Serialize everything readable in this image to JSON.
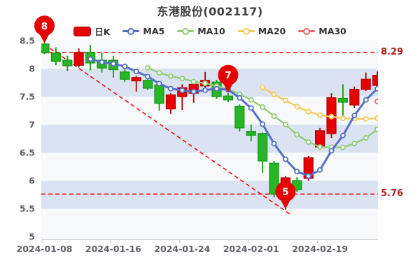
{
  "title": "东港股份(002117)",
  "legend": {
    "items": [
      {
        "label": "日K",
        "type": "candlestick",
        "color": "#e60000",
        "border": "#b30000"
      },
      {
        "label": "MA5",
        "type": "line",
        "period": 5,
        "color": "#5470c6"
      },
      {
        "label": "MA10",
        "type": "line",
        "period": 10,
        "color": "#91cc75"
      },
      {
        "label": "MA20",
        "type": "line",
        "period": 20,
        "color": "#fac858"
      },
      {
        "label": "MA30",
        "type": "line",
        "period": 30,
        "color": "#ee6666"
      }
    ]
  },
  "y_axis": {
    "ticks": [
      {
        "label": "8.5",
        "value": 8.5
      },
      {
        "label": "8",
        "value": 8.0
      },
      {
        "label": "7.5",
        "value": 7.5
      },
      {
        "label": "7",
        "value": 7.0
      },
      {
        "label": "6.5",
        "value": 6.5
      },
      {
        "label": "6",
        "value": 6.0
      },
      {
        "label": "5.5",
        "value": 5.5
      },
      {
        "label": "5",
        "value": 5.0
      }
    ]
  },
  "x_axis": {
    "ticks": [
      {
        "label": "2024-01-08",
        "day_index": 0
      },
      {
        "label": "2024-01-16",
        "day_index": 6
      },
      {
        "label": "2024-01-24",
        "day_index": 12
      },
      {
        "label": "2024-02-01",
        "day_index": 18
      },
      {
        "label": "2024-02-19",
        "day_index": 24
      }
    ]
  },
  "annotations": {
    "high_close_line": {
      "label": "8.29",
      "value": 8.29
    },
    "low_close_line": {
      "label": "5.76",
      "value": 5.76
    },
    "trend_line": {
      "from_day": 0,
      "from_value": 8.43,
      "to_day": 21.4,
      "to_value": 5.4
    },
    "pins": [
      {
        "label": "8",
        "day_index": 0,
        "anchor_value": 8.44
      },
      {
        "label": "7",
        "day_index": 16,
        "anchor_value": 7.56
      },
      {
        "label": "5",
        "day_index": 21,
        "anchor_value": 5.48
      }
    ]
  },
  "chart_data": {
    "type": "candlestick",
    "title": "东港股份(002117)",
    "ylim": [
      4.95,
      8.5125
    ],
    "grid": "horizontal-bands",
    "legend_position": "top",
    "band_colors": [
      "#f8f9fb",
      "#dbe3f3"
    ],
    "band_value_pairs": [
      [
        8.0,
        7.5
      ],
      [
        7.0,
        6.5
      ],
      [
        6.0,
        5.5
      ]
    ],
    "up_color": "#e60000",
    "up_border": "#b30000",
    "down_color": "#28b528",
    "down_border": "#12960f",
    "dates": [
      "2024-01-08",
      "2024-01-09",
      "2024-01-10",
      "2024-01-11",
      "2024-01-12",
      "2024-01-15",
      "2024-01-16",
      "2024-01-17",
      "2024-01-18",
      "2024-01-19",
      "2024-01-22",
      "2024-01-23",
      "2024-01-24",
      "2024-01-25",
      "2024-01-26",
      "2024-01-29",
      "2024-01-30",
      "2024-01-31",
      "2024-02-01",
      "2024-02-02",
      "2024-02-05",
      "2024-02-06",
      "2024-02-07",
      "2024-02-08",
      "2024-02-19",
      "2024-02-20",
      "2024-02-21",
      "2024-02-22",
      "2024-02-23",
      "2024-02-26"
    ],
    "ohlc_order": [
      "open",
      "close",
      "low",
      "high"
    ],
    "ohlc": [
      [
        8.44,
        8.28,
        8.26,
        8.46
      ],
      [
        8.28,
        8.13,
        8.06,
        8.38
      ],
      [
        8.15,
        8.05,
        7.96,
        8.23
      ],
      [
        8.06,
        8.29,
        8.02,
        8.36
      ],
      [
        8.29,
        8.1,
        7.97,
        8.42
      ],
      [
        8.15,
        8.01,
        7.93,
        8.28
      ],
      [
        8.15,
        7.98,
        7.84,
        8.23
      ],
      [
        7.94,
        7.81,
        7.76,
        8.04
      ],
      [
        7.78,
        7.84,
        7.59,
        7.87
      ],
      [
        7.79,
        7.65,
        7.62,
        7.88
      ],
      [
        7.71,
        7.38,
        7.25,
        7.73
      ],
      [
        7.28,
        7.53,
        7.19,
        7.56
      ],
      [
        7.5,
        7.66,
        7.26,
        7.72
      ],
      [
        7.56,
        7.72,
        7.39,
        7.8
      ],
      [
        7.69,
        7.79,
        7.62,
        7.94
      ],
      [
        7.76,
        7.5,
        7.46,
        7.8
      ],
      [
        7.51,
        7.44,
        7.4,
        7.56
      ],
      [
        7.33,
        6.94,
        6.88,
        7.36
      ],
      [
        6.88,
        6.81,
        6.7,
        7.0
      ],
      [
        6.84,
        6.35,
        6.14,
        6.86
      ],
      [
        6.31,
        5.76,
        5.7,
        6.35
      ],
      [
        5.7,
        6.05,
        5.48,
        6.08
      ],
      [
        6.0,
        5.84,
        5.8,
        6.06
      ],
      [
        6.04,
        6.41,
        6.0,
        6.44
      ],
      [
        6.6,
        6.89,
        6.55,
        6.94
      ],
      [
        6.84,
        7.48,
        6.76,
        7.56
      ],
      [
        7.47,
        7.4,
        7.16,
        7.72
      ],
      [
        7.35,
        7.63,
        7.3,
        7.68
      ],
      [
        7.63,
        7.81,
        7.6,
        7.93
      ],
      [
        7.7,
        7.88,
        7.68,
        7.95
      ]
    ],
    "moving_averages": [
      {
        "name": "MA5",
        "period": 5,
        "color": "#5470c6"
      },
      {
        "name": "MA10",
        "period": 10,
        "color": "#91cc75"
      },
      {
        "name": "MA20",
        "period": 20,
        "color": "#fac858"
      },
      {
        "name": "MA30",
        "period": 30,
        "color": "#ee6666"
      }
    ]
  }
}
